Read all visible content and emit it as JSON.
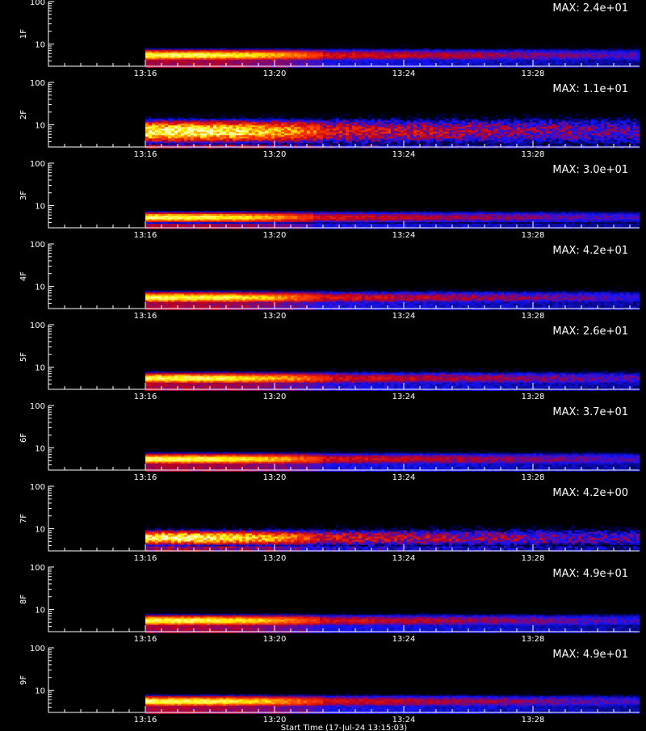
{
  "chart_data": {
    "type": "heatmap",
    "x_axis": {
      "ticks": [
        "13:16",
        "13:20",
        "13:24",
        "13:28"
      ],
      "tick_minutes": [
        0,
        4,
        8,
        12
      ],
      "range_minutes": [
        -3,
        15.3
      ],
      "data_start_minute": 0
    },
    "y_axis": {
      "scale": "log",
      "ticks": [
        "10",
        "100"
      ],
      "tick_values": [
        10,
        100
      ],
      "range": [
        3,
        100
      ]
    },
    "xlabel": "Start Time (17-Jul-24 13:15:03)",
    "colormap": [
      "#000000",
      "#000060",
      "#0000ff",
      "#ff0000",
      "#ffff00",
      "#ffffff"
    ],
    "panels": [
      {
        "label": "1F",
        "max": "MAX: 2.4e+01",
        "hot_until_minute": 5.5,
        "band": [
          4,
          8
        ],
        "noise": 0.25
      },
      {
        "label": "2F",
        "max": "MAX: 1.1e+01",
        "hot_until_minute": 5.5,
        "band": [
          3.5,
          15
        ],
        "noise": 0.6
      },
      {
        "label": "3F",
        "max": "MAX: 3.0e+01",
        "hot_until_minute": 5.2,
        "band": [
          4,
          7.5
        ],
        "noise": 0.25
      },
      {
        "label": "4F",
        "max": "MAX: 4.2e+01",
        "hot_until_minute": 5.3,
        "band": [
          4,
          8
        ],
        "noise": 0.3
      },
      {
        "label": "5F",
        "max": "MAX: 2.6e+01",
        "hot_until_minute": 5.6,
        "band": [
          4,
          8
        ],
        "noise": 0.3
      },
      {
        "label": "6F",
        "max": "MAX: 3.7e+01",
        "hot_until_minute": 5.5,
        "band": [
          4,
          8
        ],
        "noise": 0.25
      },
      {
        "label": "7F",
        "max": "MAX: 4.2e+00",
        "hot_until_minute": 5.2,
        "band": [
          4,
          10
        ],
        "noise": 0.6
      },
      {
        "label": "8F",
        "max": "MAX: 4.9e+01",
        "hot_until_minute": 5.3,
        "band": [
          4,
          8
        ],
        "noise": 0.25
      },
      {
        "label": "9F",
        "max": "MAX: 4.9e+01",
        "hot_until_minute": 5.4,
        "band": [
          4,
          8
        ],
        "noise": 0.25
      }
    ]
  }
}
